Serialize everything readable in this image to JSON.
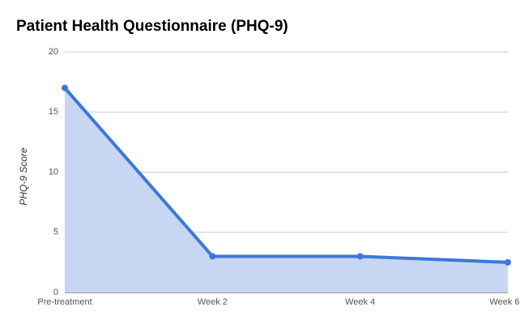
{
  "chart_data": {
    "type": "area",
    "title": "Patient Health Questionnaire (PHQ-9)",
    "y_label": "PHQ-9 Score",
    "categories": [
      "Pre-treatment",
      "Week 2",
      "Week 4",
      "Week 6"
    ],
    "values": [
      17,
      3,
      3,
      2.5
    ],
    "color": "#3c78d8",
    "fill_color": "#c6d6f3",
    "ylim": [
      0,
      20
    ],
    "yticks": [
      0,
      5,
      10,
      15,
      20
    ],
    "grid": true
  }
}
